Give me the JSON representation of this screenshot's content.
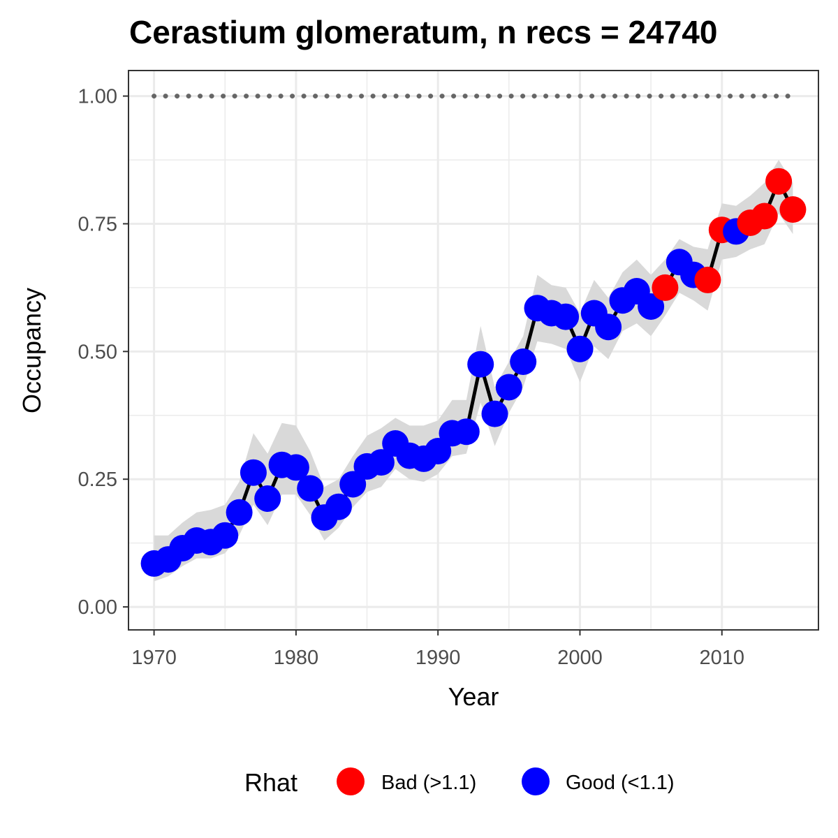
{
  "chart_data": {
    "type": "line",
    "title": "Cerastium glomeratum, n recs = 24740",
    "xlabel": "Year",
    "ylabel": "Occupancy",
    "xlim": [
      1968.2,
      2016.8
    ],
    "ylim": [
      -0.045,
      1.05
    ],
    "x_ticks": [
      1970,
      1980,
      1990,
      2000,
      2010
    ],
    "y_ticks": [
      0.0,
      0.25,
      0.5,
      0.75,
      1.0
    ],
    "x_tick_labels": [
      "1970",
      "1980",
      "1990",
      "2000",
      "2010"
    ],
    "y_tick_labels": [
      "0.00",
      "0.25",
      "0.50",
      "0.75",
      "1.00"
    ],
    "grid": true,
    "legend_position": "bottom",
    "colors": {
      "bad": "#ff0000",
      "good": "#0000ff",
      "line": "#000000",
      "ribbon": "#d9d9d9",
      "reference": "#666666",
      "grid": "#ebebeb",
      "panel_border": "#333333"
    },
    "legend": {
      "title": "Rhat",
      "items": [
        {
          "key": "bad",
          "label": "Bad (>1.1)"
        },
        {
          "key": "good",
          "label": "Good (<1.1)"
        }
      ]
    },
    "reference_line_y": 1.0,
    "series": [
      {
        "x": [
          1970,
          1971,
          1972,
          1973,
          1974,
          1975,
          1976,
          1977,
          1978,
          1979,
          1980,
          1981,
          1982,
          1983,
          1984,
          1985,
          1986,
          1987,
          1988,
          1989,
          1990,
          1991,
          1992,
          1993,
          1994,
          1995,
          1996,
          1997,
          1998,
          1999,
          2000,
          2001,
          2002,
          2003,
          2004,
          2005,
          2006,
          2007,
          2008,
          2009,
          2010,
          2011,
          2012,
          2013,
          2014,
          2015
        ],
        "y": [
          0.085,
          0.093,
          0.115,
          0.13,
          0.127,
          0.14,
          0.185,
          0.263,
          0.212,
          0.278,
          0.273,
          0.232,
          0.175,
          0.196,
          0.24,
          0.275,
          0.283,
          0.32,
          0.296,
          0.29,
          0.305,
          0.34,
          0.343,
          0.475,
          0.378,
          0.43,
          0.48,
          0.585,
          0.575,
          0.568,
          0.505,
          0.575,
          0.548,
          0.6,
          0.618,
          0.588,
          0.625,
          0.675,
          0.65,
          0.64,
          0.738,
          0.735,
          0.752,
          0.765,
          0.833,
          0.778
        ],
        "lower": [
          0.05,
          0.06,
          0.08,
          0.095,
          0.095,
          0.105,
          0.14,
          0.2,
          0.16,
          0.22,
          0.22,
          0.18,
          0.13,
          0.155,
          0.195,
          0.225,
          0.235,
          0.27,
          0.25,
          0.245,
          0.26,
          0.295,
          0.3,
          0.4,
          0.315,
          0.38,
          0.43,
          0.52,
          0.515,
          0.505,
          0.44,
          0.51,
          0.485,
          0.54,
          0.555,
          0.53,
          0.57,
          0.615,
          0.6,
          0.58,
          0.68,
          0.685,
          0.7,
          0.71,
          0.77,
          0.73
        ],
        "upper": [
          0.14,
          0.14,
          0.165,
          0.185,
          0.19,
          0.2,
          0.245,
          0.34,
          0.3,
          0.36,
          0.355,
          0.305,
          0.235,
          0.25,
          0.295,
          0.335,
          0.35,
          0.37,
          0.355,
          0.355,
          0.365,
          0.405,
          0.405,
          0.55,
          0.43,
          0.48,
          0.53,
          0.65,
          0.63,
          0.625,
          0.575,
          0.64,
          0.605,
          0.655,
          0.68,
          0.65,
          0.68,
          0.72,
          0.705,
          0.7,
          0.79,
          0.785,
          0.805,
          0.83,
          0.875,
          0.83
        ],
        "rhat": [
          "good",
          "good",
          "good",
          "good",
          "good",
          "good",
          "good",
          "good",
          "good",
          "good",
          "good",
          "good",
          "good",
          "good",
          "good",
          "good",
          "good",
          "good",
          "good",
          "good",
          "good",
          "good",
          "good",
          "good",
          "good",
          "good",
          "good",
          "good",
          "good",
          "good",
          "good",
          "good",
          "good",
          "good",
          "good",
          "good",
          "bad",
          "good",
          "good",
          "bad",
          "bad",
          "good",
          "bad",
          "bad",
          "bad",
          "bad"
        ]
      }
    ]
  }
}
